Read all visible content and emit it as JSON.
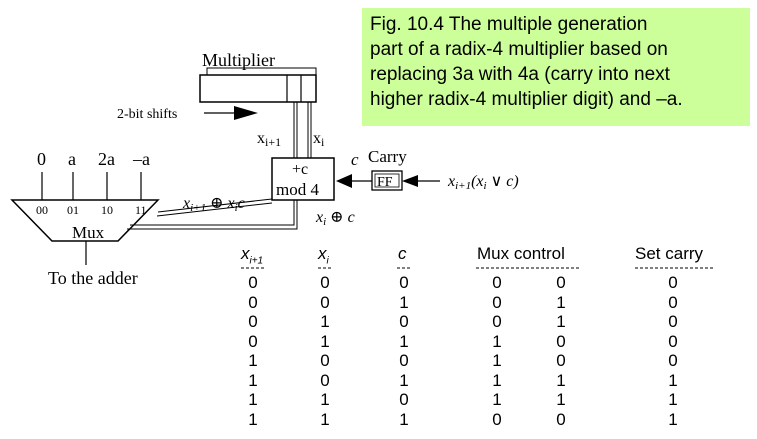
{
  "caption": {
    "lines": [
      "Fig. 10.4   The multiple generation",
      "part of a radix-4 multiplier based on",
      "replacing 3a with 4a (carry into next",
      "higher radix-4 multiplier digit) and –a."
    ]
  },
  "diagram": {
    "multiplier_label": "Multiplier",
    "shifts_label": "2-bit shifts",
    "xi1_label": "x",
    "xi1_sub": "i+1",
    "xi_label": "x",
    "xi_sub": "i",
    "plusc_label": "+c",
    "mod4_label": "mod 4",
    "c_label": "c",
    "carry_label": "Carry",
    "ff_label": "FF",
    "carry_input_label": "x",
    "carry_input_sub": "i+1",
    "carry_input_rest": "(x",
    "carry_input_sub2": "i",
    "carry_input_tail": " ∨ c)",
    "mux_inputs": [
      "0",
      "a",
      "2a",
      "–a"
    ],
    "mux_codes": [
      "00",
      "01",
      "10",
      "11"
    ],
    "mux_label": "Mux",
    "adder_label": "To the adder",
    "xor_upper_x": "x",
    "xor_upper_sub": "i+1",
    "xor_upper_rest": " ⊕ x",
    "xor_upper_sub2": "i",
    "xor_upper_c": "c",
    "xor_lower_x": "x",
    "xor_lower_sub": "i",
    "xor_lower_rest": " ⊕ c"
  },
  "table": {
    "headers": {
      "x_next": "x",
      "x_next_sub": "i+1",
      "x_i": "x",
      "x_i_sub": "i",
      "c": "c",
      "mux_control": "Mux control",
      "set_carry": "Set carry"
    },
    "rows": [
      [
        "0",
        "0",
        "0",
        "0",
        "0",
        "0"
      ],
      [
        "0",
        "0",
        "1",
        "0",
        "1",
        "0"
      ],
      [
        "0",
        "1",
        "0",
        "0",
        "1",
        "0"
      ],
      [
        "0",
        "1",
        "1",
        "1",
        "0",
        "0"
      ],
      [
        "1",
        "0",
        "0",
        "1",
        "0",
        "0"
      ],
      [
        "1",
        "0",
        "1",
        "1",
        "1",
        "1"
      ],
      [
        "1",
        "1",
        "0",
        "1",
        "1",
        "1"
      ],
      [
        "1",
        "1",
        "1",
        "0",
        "0",
        "1"
      ]
    ]
  }
}
